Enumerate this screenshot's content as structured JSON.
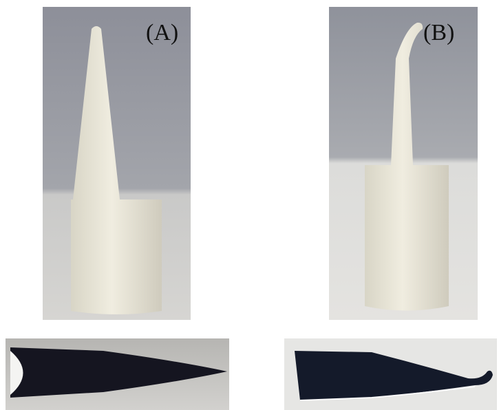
{
  "panels": [
    {
      "label": "(A)"
    },
    {
      "label": "(B)"
    }
  ]
}
